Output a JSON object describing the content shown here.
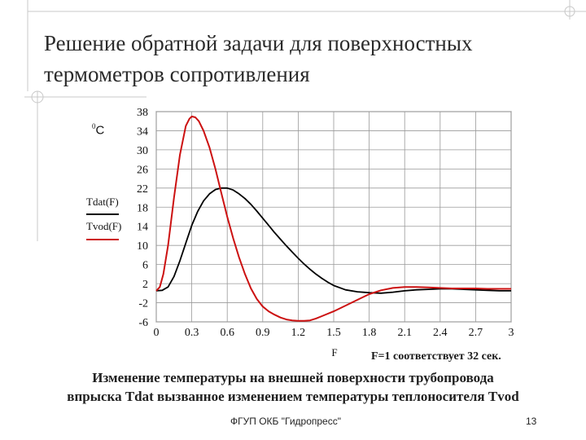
{
  "slide": {
    "title_line1": "Решение обратной задачи для  поверхностных",
    "title_line2": "термометров сопротивления",
    "caption_line1": "Изменение температуры на внешней поверхности трубопровода",
    "caption_line2": "впрыска Tdat  вызванное изменением температуры теплоносителя Tvod",
    "note": "F=1 соответствует 32 сек.",
    "footer_org": "ФГУП ОКБ \"Гидропресс\"",
    "page_number": "13"
  },
  "chart_data": {
    "type": "line",
    "title": "",
    "xlabel": "F",
    "ylabel_superscript": "0",
    "ylabel_unit": "C",
    "xlim": [
      0,
      3
    ],
    "ylim": [
      -6,
      38
    ],
    "x_ticks": [
      "0",
      "0.3",
      "0.6",
      "0.9",
      "1.2",
      "1.5",
      "1.8",
      "2.1",
      "2.4",
      "2.7",
      "3"
    ],
    "y_ticks": [
      "38",
      "34",
      "30",
      "26",
      "22",
      "18",
      "14",
      "10",
      "6",
      "2",
      "-2",
      "-6"
    ],
    "grid": true,
    "legend_position": "left",
    "series": [
      {
        "name": "Tdat(F)",
        "color": "#000000",
        "x": [
          0,
          0.05,
          0.1,
          0.15,
          0.2,
          0.25,
          0.3,
          0.35,
          0.4,
          0.45,
          0.5,
          0.55,
          0.6,
          0.65,
          0.7,
          0.75,
          0.8,
          0.85,
          0.9,
          0.95,
          1.0,
          1.05,
          1.1,
          1.15,
          1.2,
          1.25,
          1.3,
          1.35,
          1.4,
          1.45,
          1.5,
          1.6,
          1.7,
          1.8,
          1.9,
          2.0,
          2.1,
          2.2,
          2.3,
          2.4,
          2.5,
          2.6,
          2.7,
          2.8,
          2.9,
          3.0
        ],
        "y": [
          0.5,
          0.6,
          1.3,
          3.5,
          6.8,
          10.5,
          14.2,
          17.1,
          19.3,
          20.8,
          21.7,
          22.0,
          22.0,
          21.6,
          20.8,
          19.8,
          18.6,
          17.2,
          15.7,
          14.2,
          12.7,
          11.3,
          9.9,
          8.6,
          7.3,
          6.1,
          5.0,
          4.0,
          3.1,
          2.3,
          1.6,
          0.7,
          0.3,
          0.1,
          0.0,
          0.2,
          0.5,
          0.7,
          0.8,
          0.9,
          0.9,
          0.8,
          0.7,
          0.6,
          0.5,
          0.5
        ]
      },
      {
        "name": "Tvod(F)",
        "color": "#cc1111",
        "x": [
          0,
          0.03,
          0.06,
          0.1,
          0.15,
          0.2,
          0.25,
          0.28,
          0.3,
          0.33,
          0.36,
          0.4,
          0.45,
          0.5,
          0.55,
          0.6,
          0.65,
          0.7,
          0.75,
          0.8,
          0.85,
          0.9,
          0.95,
          1.0,
          1.05,
          1.1,
          1.15,
          1.2,
          1.25,
          1.3,
          1.35,
          1.4,
          1.5,
          1.6,
          1.7,
          1.8,
          1.9,
          2.0,
          2.1,
          2.2,
          2.3,
          2.4,
          2.5,
          2.6,
          2.7,
          2.8,
          2.9,
          3.0
        ],
        "y": [
          0.5,
          1.3,
          4.0,
          10.0,
          20.0,
          29.0,
          35.0,
          36.5,
          37.0,
          36.8,
          36.0,
          34.0,
          30.5,
          26.0,
          21.0,
          16.0,
          11.5,
          7.5,
          4.0,
          1.0,
          -1.2,
          -2.8,
          -3.8,
          -4.5,
          -5.1,
          -5.5,
          -5.7,
          -5.8,
          -5.8,
          -5.7,
          -5.3,
          -4.8,
          -3.8,
          -2.6,
          -1.4,
          -0.2,
          0.6,
          1.1,
          1.3,
          1.3,
          1.2,
          1.1,
          1.0,
          1.0,
          1.0,
          0.9,
          0.9,
          0.9
        ]
      }
    ]
  }
}
